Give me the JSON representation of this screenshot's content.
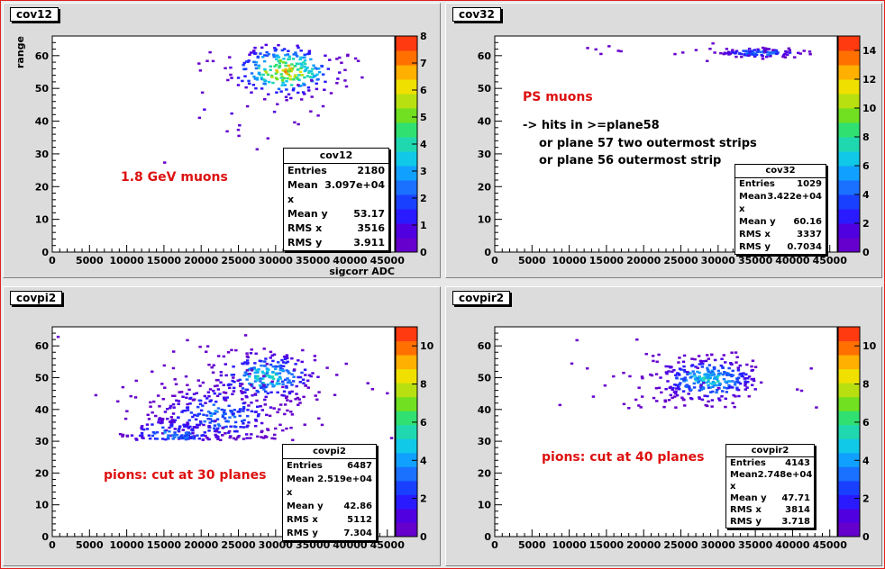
{
  "pads": [
    {
      "id": "cov12",
      "title": "cov12",
      "x_axis_label": "sigcorr ADC",
      "y_axis_label": "range",
      "annotations": [
        {
          "text": "1.8 GeV muons",
          "color": "#dd1111"
        }
      ],
      "stats": {
        "title": "cov12",
        "rows": [
          {
            "label": "Entries",
            "value": "2180"
          },
          {
            "label": "Mean x",
            "value": "3.097e+04"
          },
          {
            "label": "Mean y",
            "value": "53.17"
          },
          {
            "label": "RMS x",
            "value": "3516"
          },
          {
            "label": "RMS y",
            "value": "3.911"
          }
        ]
      }
    },
    {
      "id": "cov32",
      "title": "cov32",
      "x_axis_label": "",
      "y_axis_label": "",
      "annotations": [
        {
          "text": "PS muons",
          "color": "#dd1111"
        },
        {
          "text": "-> hits in >=plane58",
          "color": "#000000"
        },
        {
          "text": "or plane 57 two outermost strips",
          "color": "#000000"
        },
        {
          "text": "or plane 56 outermost strip",
          "color": "#000000"
        }
      ],
      "stats": {
        "title": "cov32",
        "rows": [
          {
            "label": "Entries",
            "value": "1029"
          },
          {
            "label": "Mean x",
            "value": "3.422e+04"
          },
          {
            "label": "Mean y",
            "value": "60.16"
          },
          {
            "label": "RMS x",
            "value": "3337"
          },
          {
            "label": "RMS y",
            "value": "0.7034"
          }
        ]
      }
    },
    {
      "id": "covpi2",
      "title": "covpi2",
      "x_axis_label": "",
      "y_axis_label": "",
      "annotations": [
        {
          "text": "pions: cut at 30 planes",
          "color": "#dd1111"
        }
      ],
      "stats": {
        "title": "covpi2",
        "rows": [
          {
            "label": "Entries",
            "value": "6487"
          },
          {
            "label": "Mean x",
            "value": "2.519e+04"
          },
          {
            "label": "Mean y",
            "value": "42.86"
          },
          {
            "label": "RMS x",
            "value": "5112"
          },
          {
            "label": "RMS y",
            "value": "7.304"
          }
        ]
      }
    },
    {
      "id": "covpir2",
      "title": "covpir2",
      "x_axis_label": "",
      "y_axis_label": "",
      "annotations": [
        {
          "text": "pions: cut at 40 planes",
          "color": "#dd1111"
        }
      ],
      "stats": {
        "title": "covpir2",
        "rows": [
          {
            "label": "Entries",
            "value": "4143"
          },
          {
            "label": "Mean x",
            "value": "2.748e+04"
          },
          {
            "label": "Mean y",
            "value": "47.71"
          },
          {
            "label": "RMS x",
            "value": "3814"
          },
          {
            "label": "RMS y",
            "value": "3.718"
          }
        ]
      }
    }
  ],
  "chart_data": [
    {
      "type": "heatmap",
      "title": "cov12",
      "xlabel": "sigcorr ADC",
      "ylabel": "range",
      "xlim": [
        0,
        46000
      ],
      "ylim": [
        0,
        66
      ],
      "x_ticks": [
        "0",
        "5000",
        "10000",
        "15000",
        "20000",
        "25000",
        "30000",
        "35000",
        "40000",
        "45000"
      ],
      "y_ticks": [
        "0",
        "10",
        "20",
        "30",
        "40",
        "50",
        "60"
      ],
      "z_ticks": [
        "0",
        "1",
        "2",
        "3",
        "4",
        "5",
        "6",
        "7",
        "8"
      ],
      "zmax": 8,
      "blobs": [
        {
          "cx": 31000,
          "cy": 55,
          "sx": 3500,
          "sy": 3.9,
          "n": 260,
          "zmax": 7.5
        },
        {
          "cx": 25000,
          "cy": 45,
          "sx": 6000,
          "sy": 8,
          "n": 25,
          "zmax": 1
        }
      ]
    },
    {
      "type": "heatmap",
      "title": "cov32",
      "xlabel": "",
      "ylabel": "",
      "xlim": [
        0,
        46000
      ],
      "ylim": [
        0,
        66
      ],
      "x_ticks": [
        "0",
        "5000",
        "10000",
        "15000",
        "20000",
        "25000",
        "30000",
        "35000",
        "40000",
        "45000"
      ],
      "y_ticks": [
        "0",
        "10",
        "20",
        "30",
        "40",
        "50",
        "60"
      ],
      "z_ticks": [
        "0",
        "2",
        "4",
        "6",
        "8",
        "10",
        "12",
        "14"
      ],
      "zmax": 15,
      "blobs": [
        {
          "cx": 35500,
          "cy": 60.5,
          "sx": 3000,
          "sy": 0.7,
          "n": 110,
          "zmax": 6
        },
        {
          "cx": 25000,
          "cy": 60.5,
          "sx": 9000,
          "sy": 1.2,
          "n": 14,
          "zmax": 1
        }
      ]
    },
    {
      "type": "heatmap",
      "title": "covpi2",
      "xlabel": "",
      "ylabel": "",
      "xlim": [
        0,
        46000
      ],
      "ylim": [
        0,
        66
      ],
      "x_ticks": [
        "0",
        "5000",
        "10000",
        "15000",
        "20000",
        "25000",
        "30000",
        "35000",
        "40000",
        "45000"
      ],
      "y_ticks": [
        "0",
        "10",
        "20",
        "30",
        "40",
        "50",
        "60"
      ],
      "z_ticks": [
        "0",
        "2",
        "4",
        "6",
        "8",
        "10"
      ],
      "zmax": 11,
      "ymin_cut": 30,
      "blobs": [
        {
          "cx": 28500,
          "cy": 50,
          "sx": 3500,
          "sy": 4,
          "n": 240,
          "zmax": 6
        },
        {
          "cx": 22000,
          "cy": 38,
          "sx": 4500,
          "sy": 5,
          "n": 260,
          "zmax": 4
        },
        {
          "cx": 16000,
          "cy": 32,
          "sx": 3500,
          "sy": 2.5,
          "n": 110,
          "zmax": 4
        },
        {
          "cx": 24000,
          "cy": 45,
          "sx": 9000,
          "sy": 10,
          "n": 60,
          "zmax": 1
        }
      ]
    },
    {
      "type": "heatmap",
      "title": "covpir2",
      "xlabel": "",
      "ylabel": "",
      "xlim": [
        0,
        46000
      ],
      "ylim": [
        0,
        66
      ],
      "x_ticks": [
        "0",
        "5000",
        "10000",
        "15000",
        "20000",
        "25000",
        "30000",
        "35000",
        "40000",
        "45000"
      ],
      "y_ticks": [
        "0",
        "10",
        "20",
        "30",
        "40",
        "50",
        "60"
      ],
      "z_ticks": [
        "0",
        "2",
        "4",
        "6",
        "8",
        "10"
      ],
      "zmax": 11,
      "ymin_cut": 40,
      "blobs": [
        {
          "cx": 28500,
          "cy": 49,
          "sx": 3500,
          "sy": 3.5,
          "n": 300,
          "zmax": 6
        },
        {
          "cx": 25000,
          "cy": 48,
          "sx": 8000,
          "sy": 7,
          "n": 40,
          "zmax": 1
        }
      ]
    }
  ]
}
